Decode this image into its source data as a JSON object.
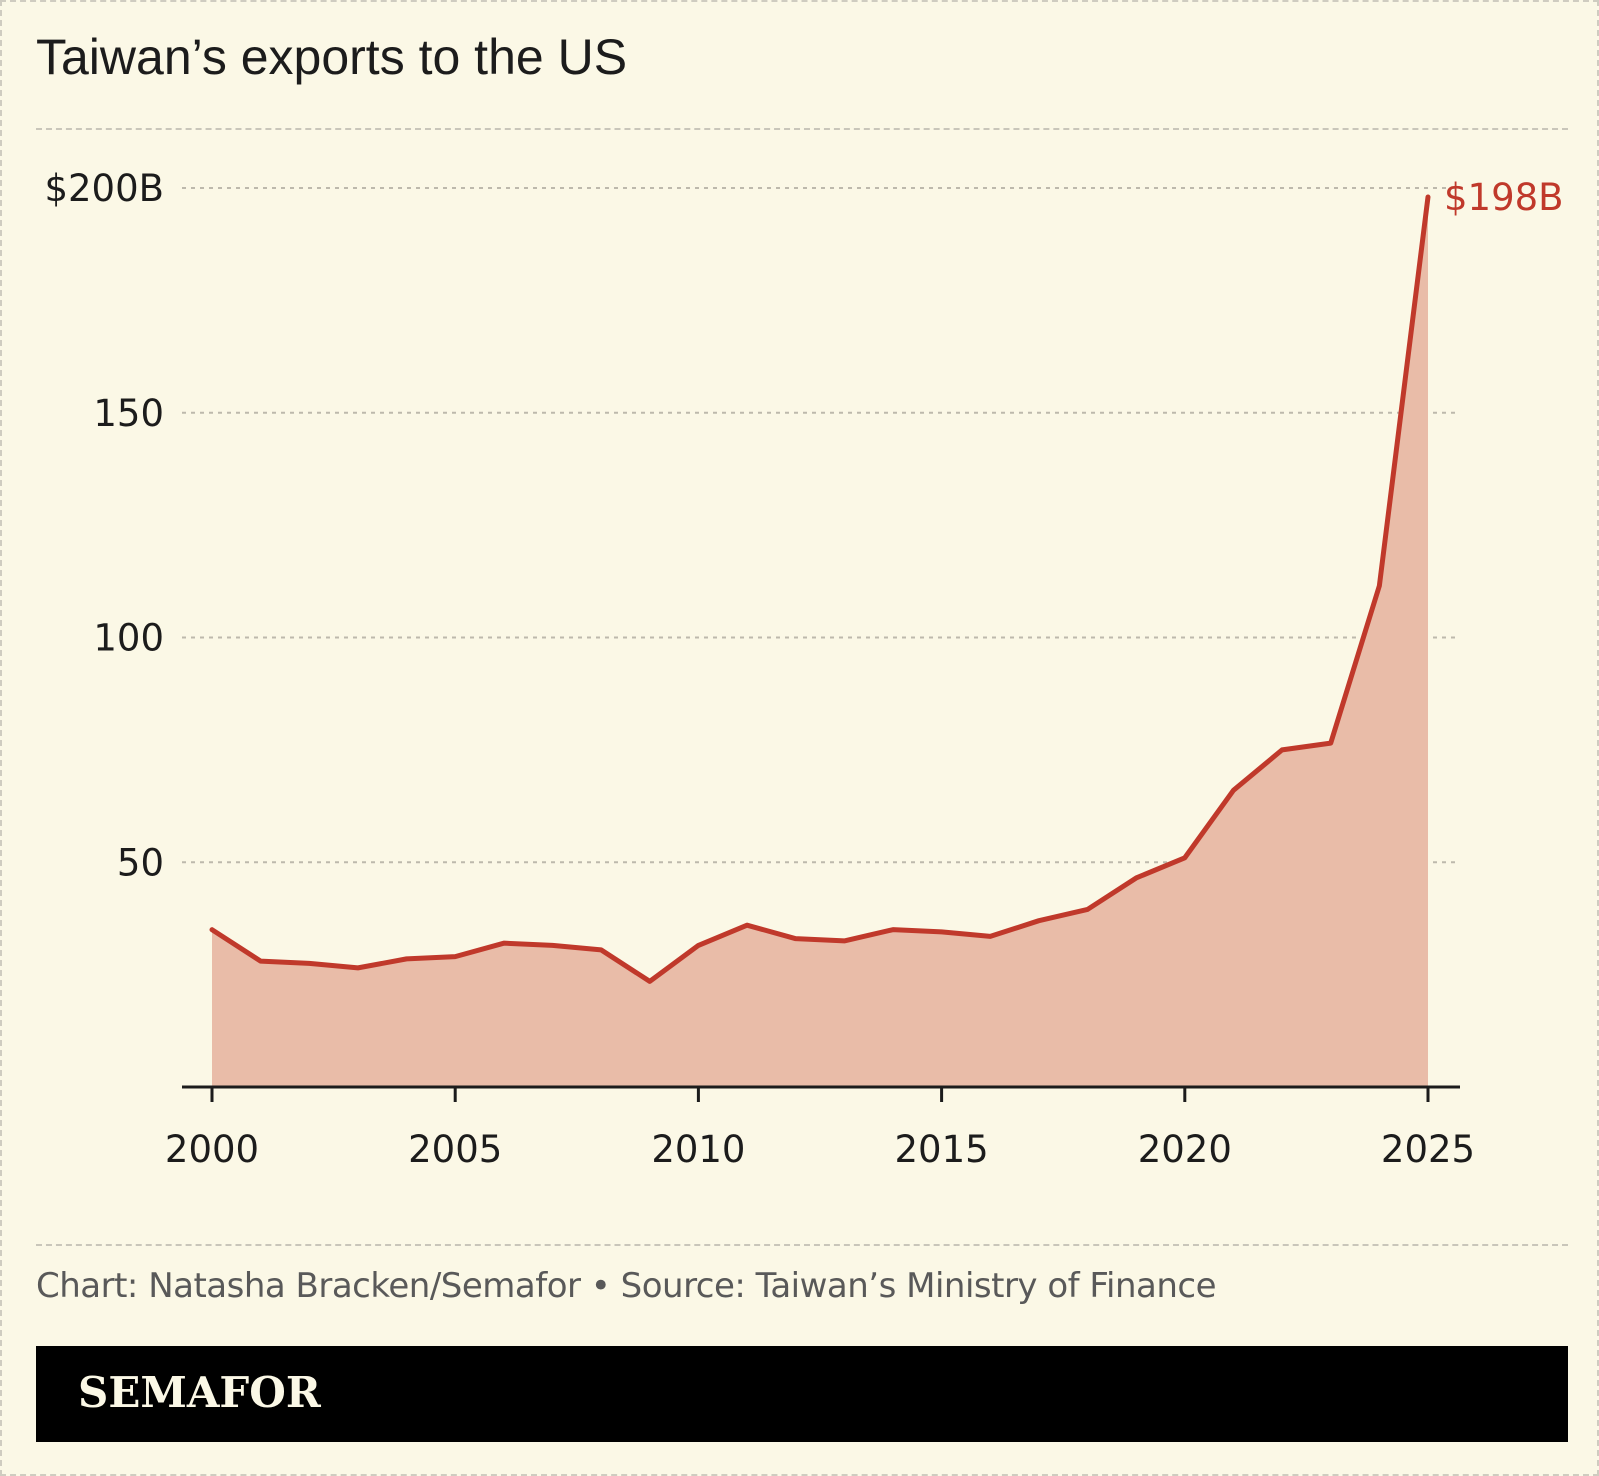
{
  "title": "Taiwan’s exports to the US",
  "credit": "Chart: Natasha Bracken/Semafor • Source: Taiwan’s Ministry of Finance",
  "brand": "SEMAFOR",
  "colors": {
    "background": "#fbf8e6",
    "line": "#c0392b",
    "area": "#e9bca8",
    "text": "#1c1c1c",
    "muted_text": "#595959",
    "brand_bar": "#000000",
    "gridline": "#bdb9ac"
  },
  "chart_data": {
    "type": "area",
    "title": "Taiwan’s exports to the US",
    "xlabel": "",
    "ylabel": "",
    "x": [
      2000,
      2001,
      2002,
      2003,
      2004,
      2005,
      2006,
      2007,
      2008,
      2009,
      2010,
      2011,
      2012,
      2013,
      2014,
      2015,
      2016,
      2017,
      2018,
      2019,
      2020,
      2021,
      2022,
      2023,
      2024,
      2025
    ],
    "series": [
      {
        "values": [
          35,
          28,
          27.5,
          26.5,
          28.5,
          29,
          32,
          31.5,
          30.5,
          23.5,
          31.5,
          36,
          33,
          32.5,
          35,
          34.5,
          33.5,
          37,
          39.5,
          46.5,
          51,
          66,
          75,
          76.5,
          111.5,
          198
        ]
      }
    ],
    "xlim": [
      2000,
      2025
    ],
    "ylim": [
      0,
      200
    ],
    "x_ticks": [
      2000,
      2005,
      2010,
      2015,
      2020,
      2025
    ],
    "x_tick_labels": [
      "2000",
      "2005",
      "2010",
      "2015",
      "2020",
      "2025"
    ],
    "y_ticks": [
      50,
      100,
      150,
      200
    ],
    "y_tick_labels": [
      "50",
      "100",
      "150",
      "$200B"
    ],
    "end_label": "$198B",
    "grid": "horizontal dashed",
    "legend": "none"
  }
}
